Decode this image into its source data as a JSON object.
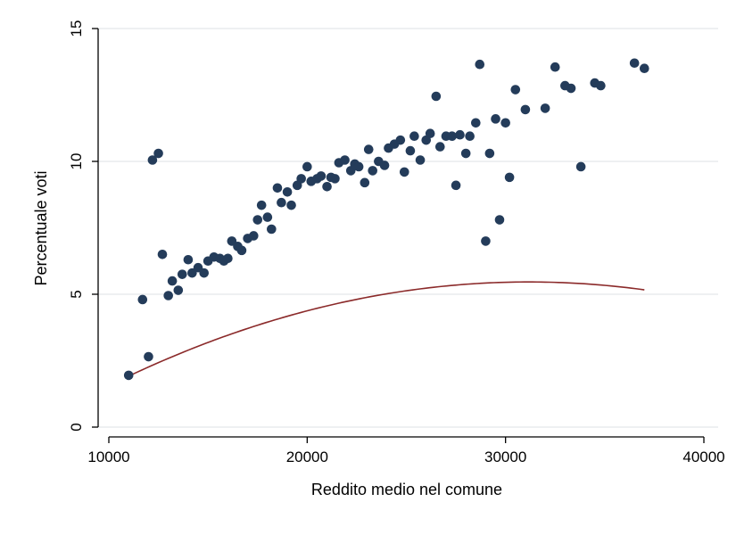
{
  "chart_data": {
    "type": "scatter",
    "xlabel": "Reddito medio nel comune",
    "ylabel": "Percentuale voti",
    "xlim": [
      10000,
      40000
    ],
    "ylim": [
      0,
      15
    ],
    "xticks": [
      10000,
      20000,
      30000,
      40000
    ],
    "yticks": [
      0,
      5,
      10,
      15
    ],
    "grid": true,
    "colors": {
      "points": "#243c5a",
      "fit_line": "#8b2a2a",
      "grid": "#e8ecee"
    },
    "points": [
      [
        11000,
        1.95
      ],
      [
        11700,
        4.8
      ],
      [
        12000,
        2.65
      ],
      [
        12200,
        10.05
      ],
      [
        12500,
        10.3
      ],
      [
        12700,
        6.5
      ],
      [
        13000,
        4.95
      ],
      [
        13200,
        5.5
      ],
      [
        13500,
        5.15
      ],
      [
        13700,
        5.75
      ],
      [
        14000,
        6.3
      ],
      [
        14200,
        5.8
      ],
      [
        14500,
        6.0
      ],
      [
        14800,
        5.8
      ],
      [
        15000,
        6.25
      ],
      [
        15300,
        6.4
      ],
      [
        15600,
        6.35
      ],
      [
        15800,
        6.25
      ],
      [
        16000,
        6.35
      ],
      [
        16200,
        7.0
      ],
      [
        16500,
        6.8
      ],
      [
        16700,
        6.65
      ],
      [
        17000,
        7.1
      ],
      [
        17300,
        7.2
      ],
      [
        17500,
        7.8
      ],
      [
        17700,
        8.35
      ],
      [
        18000,
        7.9
      ],
      [
        18200,
        7.45
      ],
      [
        18500,
        9.0
      ],
      [
        18700,
        8.45
      ],
      [
        19000,
        8.85
      ],
      [
        19200,
        8.35
      ],
      [
        19500,
        9.1
      ],
      [
        19700,
        9.35
      ],
      [
        20000,
        9.8
      ],
      [
        20200,
        9.25
      ],
      [
        20500,
        9.35
      ],
      [
        20700,
        9.45
      ],
      [
        21000,
        9.05
      ],
      [
        21200,
        9.4
      ],
      [
        21400,
        9.35
      ],
      [
        21600,
        9.95
      ],
      [
        21900,
        10.05
      ],
      [
        22200,
        9.65
      ],
      [
        22400,
        9.9
      ],
      [
        22600,
        9.8
      ],
      [
        22900,
        9.2
      ],
      [
        23100,
        10.45
      ],
      [
        23300,
        9.65
      ],
      [
        23600,
        10.0
      ],
      [
        23900,
        9.85
      ],
      [
        24100,
        10.5
      ],
      [
        24400,
        10.65
      ],
      [
        24700,
        10.8
      ],
      [
        24900,
        9.6
      ],
      [
        25200,
        10.4
      ],
      [
        25400,
        10.95
      ],
      [
        25700,
        10.05
      ],
      [
        26000,
        10.8
      ],
      [
        26200,
        11.05
      ],
      [
        26500,
        12.45
      ],
      [
        26700,
        10.55
      ],
      [
        27000,
        10.95
      ],
      [
        27300,
        10.95
      ],
      [
        27500,
        9.1
      ],
      [
        27700,
        11.0
      ],
      [
        28000,
        10.3
      ],
      [
        28200,
        10.95
      ],
      [
        28500,
        11.45
      ],
      [
        28700,
        13.65
      ],
      [
        29000,
        7.0
      ],
      [
        29200,
        10.3
      ],
      [
        29500,
        11.6
      ],
      [
        29700,
        7.8
      ],
      [
        30000,
        11.45
      ],
      [
        30200,
        9.4
      ],
      [
        30500,
        12.7
      ],
      [
        31000,
        11.95
      ],
      [
        32000,
        12.0
      ],
      [
        32500,
        13.55
      ],
      [
        33000,
        12.85
      ],
      [
        33300,
        12.75
      ],
      [
        33800,
        9.8
      ],
      [
        34500,
        12.95
      ],
      [
        34800,
        12.85
      ],
      [
        36500,
        13.7
      ],
      [
        37000,
        13.5
      ]
    ],
    "fit": {
      "type": "quadratic",
      "x_range": [
        11000,
        37000
      ],
      "coefficients": [
        -8.71e-09,
        0.000543,
        -3.0
      ]
    }
  }
}
